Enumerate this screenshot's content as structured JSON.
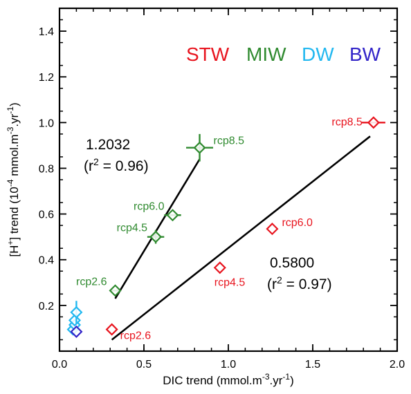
{
  "chart_data": {
    "type": "scatter",
    "xlabel": {
      "base": "DIC trend (mmol.m",
      "sup1": "-3",
      "mid": ".yr",
      "sup2": "-1",
      "end": ")"
    },
    "ylabel": {
      "a": "[H",
      "sup_a": "+",
      "b": "] trend (10",
      "sup_b": "-4",
      "c": " mmol.m",
      "sup_c": "-3",
      "d": ".yr",
      "sup_d": "-1",
      "e": ")"
    },
    "xlim": [
      0.0,
      2.0
    ],
    "ylim": [
      0.0,
      1.5
    ],
    "xticks": [
      "0.0",
      "0.5",
      "1.0",
      "1.5",
      "2.0"
    ],
    "yticks": [
      "0.2",
      "0.4",
      "0.6",
      "0.8",
      "1.0",
      "1.2",
      "1.4"
    ],
    "xtick_values": [
      0.0,
      0.5,
      1.0,
      1.5,
      2.0
    ],
    "ytick_values": [
      0.2,
      0.4,
      0.6,
      0.8,
      1.0,
      1.2,
      1.4
    ],
    "legend": [
      {
        "name": "STW",
        "color": "#e8141e"
      },
      {
        "name": "MIW",
        "color": "#2f8a2f"
      },
      {
        "name": "DW",
        "color": "#22b8f0"
      },
      {
        "name": "BW",
        "color": "#3224c8"
      }
    ],
    "series": [
      {
        "name": "STW",
        "color": "#e8141e",
        "points": [
          {
            "label": "rcp2.6",
            "x": 0.31,
            "y": 0.095,
            "xerr": 0.0,
            "yerr": 0.0
          },
          {
            "label": "rcp4.5",
            "x": 0.95,
            "y": 0.365,
            "xerr": 0.0,
            "yerr": 0.0
          },
          {
            "label": "rcp6.0",
            "x": 1.26,
            "y": 0.535,
            "xerr": 0.0,
            "yerr": 0.0
          },
          {
            "label": "rcp8.5",
            "x": 1.86,
            "y": 1.0,
            "xerr": 0.07,
            "yerr": 0.0
          }
        ],
        "fit": {
          "x": [
            0.31,
            1.84
          ],
          "y": [
            0.05,
            0.94
          ]
        },
        "annotation": {
          "slope": "0.5800",
          "r2_pre": "(r",
          "r2_sup": "2",
          "r2_post": " = 0.97)"
        }
      },
      {
        "name": "MIW",
        "color": "#2f8a2f",
        "points": [
          {
            "label": "rcp2.6",
            "x": 0.33,
            "y": 0.265,
            "xerr": 0.03,
            "yerr": 0.0
          },
          {
            "label": "rcp4.5",
            "x": 0.57,
            "y": 0.5,
            "xerr": 0.05,
            "yerr": 0.03
          },
          {
            "label": "rcp6.0",
            "x": 0.67,
            "y": 0.595,
            "xerr": 0.05,
            "yerr": 0.0
          },
          {
            "label": "rcp8.5",
            "x": 0.83,
            "y": 0.89,
            "xerr": 0.08,
            "yerr": 0.06
          }
        ],
        "fit": {
          "x": [
            0.33,
            0.83
          ],
          "y": [
            0.23,
            0.84
          ]
        },
        "annotation": {
          "slope": "1.2032",
          "r2_pre": "(r",
          "r2_sup": "2",
          "r2_post": " = 0.96)"
        }
      },
      {
        "name": "DW",
        "color": "#22b8f0",
        "points": [
          {
            "label": "",
            "x": 0.08,
            "y": 0.095,
            "xerr": 0.0,
            "yerr": 0.0
          },
          {
            "label": "",
            "x": 0.09,
            "y": 0.115,
            "xerr": 0.0,
            "yerr": 0.0
          },
          {
            "label": "",
            "x": 0.09,
            "y": 0.135,
            "xerr": 0.0,
            "yerr": 0.0
          },
          {
            "label": "",
            "x": 0.1,
            "y": 0.17,
            "xerr": 0.0,
            "yerr": 0.05
          }
        ]
      },
      {
        "name": "BW",
        "color": "#3224c8",
        "points": [
          {
            "label": "",
            "x": 0.1,
            "y": 0.085,
            "xerr": 0.0,
            "yerr": 0.0
          }
        ]
      }
    ]
  }
}
